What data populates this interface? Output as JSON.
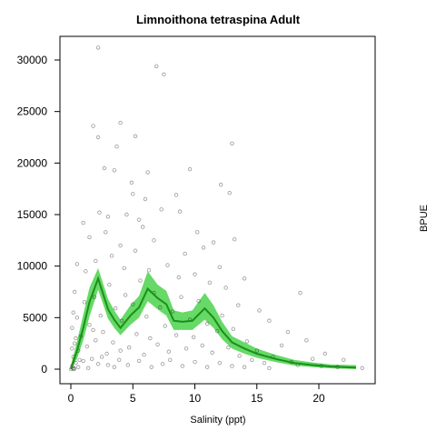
{
  "chart_data": {
    "type": "scatter_band",
    "title": "Limnoithona tetraspina Adult",
    "xlabel": "Salinity (ppt)",
    "ylabel": "BPUE",
    "xlim": [
      -0.88,
      24.54
    ],
    "ylim": [
      -1412,
      32294
    ],
    "xticks": [
      0,
      5,
      10,
      15,
      20
    ],
    "yticks": [
      0,
      5000,
      10000,
      15000,
      20000,
      25000,
      30000
    ],
    "point_color": "#000000",
    "points": [
      [
        2.2,
        31200
      ],
      [
        6.9,
        29400
      ],
      [
        7.5,
        28600
      ],
      [
        1.8,
        23600
      ],
      [
        2.2,
        22500
      ],
      [
        4.0,
        23900
      ],
      [
        3.7,
        21600
      ],
      [
        5.2,
        22600
      ],
      [
        13,
        21900
      ],
      [
        2.7,
        19500
      ],
      [
        3.5,
        19300
      ],
      [
        6.2,
        19100
      ],
      [
        9.6,
        19400
      ],
      [
        4.9,
        18100
      ],
      [
        12.1,
        17900
      ],
      [
        5.0,
        17000
      ],
      [
        6.0,
        16500
      ],
      [
        8.5,
        16900
      ],
      [
        12.8,
        17100
      ],
      [
        1.0,
        14200
      ],
      [
        2.3,
        15200
      ],
      [
        3.0,
        14800
      ],
      [
        4.5,
        15000
      ],
      [
        5.5,
        14500
      ],
      [
        7.3,
        15500
      ],
      [
        8.8,
        15300
      ],
      [
        10.2,
        13300
      ],
      [
        11.5,
        12300
      ],
      [
        13.2,
        12600
      ],
      [
        1.5,
        12800
      ],
      [
        2.8,
        13300
      ],
      [
        4.0,
        12000
      ],
      [
        5.8,
        13800
      ],
      [
        6.7,
        12500
      ],
      [
        9.2,
        11200
      ],
      [
        10.7,
        11800
      ],
      [
        12.0,
        9900
      ],
      [
        14.0,
        8800
      ],
      [
        18.5,
        7400
      ],
      [
        0.5,
        10200
      ],
      [
        1.2,
        9500
      ],
      [
        2.0,
        10500
      ],
      [
        3.3,
        11000
      ],
      [
        4.3,
        9800
      ],
      [
        5.2,
        11500
      ],
      [
        6.3,
        9600
      ],
      [
        7.8,
        10100
      ],
      [
        8.7,
        8900
      ],
      [
        10.0,
        9200
      ],
      [
        11.2,
        8400
      ],
      [
        12.5,
        7900
      ],
      [
        13.5,
        6200
      ],
      [
        15.2,
        5700
      ],
      [
        16.0,
        4700
      ],
      [
        17.5,
        3600
      ],
      [
        19.0,
        2800
      ],
      [
        20.5,
        1500
      ],
      [
        22,
        900
      ],
      [
        23.5,
        100
      ],
      [
        0.1,
        300
      ],
      [
        0.2,
        1200
      ],
      [
        0.3,
        2500
      ],
      [
        0.1,
        4000
      ],
      [
        0.4,
        600
      ],
      [
        0.2,
        100
      ],
      [
        0.5,
        5000
      ],
      [
        0.6,
        1800
      ],
      [
        0.8,
        3200
      ],
      [
        1.0,
        800
      ],
      [
        1.1,
        6500
      ],
      [
        1.3,
        2200
      ],
      [
        1.5,
        4300
      ],
      [
        1.7,
        1000
      ],
      [
        1.9,
        7000
      ],
      [
        2.0,
        2800
      ],
      [
        2.2,
        500
      ],
      [
        2.4,
        5200
      ],
      [
        2.6,
        3600
      ],
      [
        2.9,
        1500
      ],
      [
        3.1,
        8200
      ],
      [
        3.4,
        2600
      ],
      [
        3.6,
        5900
      ],
      [
        3.9,
        900
      ],
      [
        4.1,
        4700
      ],
      [
        4.4,
        7200
      ],
      [
        4.7,
        2100
      ],
      [
        5.0,
        6300
      ],
      [
        5.3,
        3400
      ],
      [
        5.6,
        8600
      ],
      [
        5.9,
        1400
      ],
      [
        6.1,
        5100
      ],
      [
        6.4,
        3000
      ],
      [
        6.7,
        7400
      ],
      [
        7.0,
        2400
      ],
      [
        7.2,
        6000
      ],
      [
        7.6,
        4200
      ],
      [
        7.9,
        1700
      ],
      [
        8.2,
        5600
      ],
      [
        8.5,
        3300
      ],
      [
        8.9,
        7000
      ],
      [
        9.3,
        2000
      ],
      [
        9.6,
        4800
      ],
      [
        9.9,
        3100
      ],
      [
        10.3,
        6600
      ],
      [
        10.6,
        2300
      ],
      [
        11.0,
        4400
      ],
      [
        11.4,
        1600
      ],
      [
        11.8,
        3700
      ],
      [
        12.2,
        5200
      ],
      [
        12.7,
        2100
      ],
      [
        13.1,
        3900
      ],
      [
        13.6,
        1300
      ],
      [
        14.2,
        2700
      ],
      [
        14.6,
        900
      ],
      [
        15.0,
        1800
      ],
      [
        15.6,
        600
      ],
      [
        16.3,
        1200
      ],
      [
        17.0,
        2300
      ],
      [
        17.8,
        700
      ],
      [
        18.3,
        400
      ],
      [
        19.5,
        1000
      ],
      [
        20.2,
        300
      ],
      [
        21.5,
        200
      ],
      [
        0.0,
        0
      ],
      [
        0.2,
        0
      ],
      [
        0.3,
        50
      ],
      [
        0.1,
        2000
      ],
      [
        0.4,
        3000
      ],
      [
        0.2,
        5500
      ],
      [
        0.3,
        7500
      ],
      [
        0.6,
        200
      ],
      [
        0.7,
        900
      ],
      [
        1.4,
        100
      ],
      [
        1.8,
        3800
      ],
      [
        2.5,
        1200
      ],
      [
        3.0,
        400
      ],
      [
        3.5,
        200
      ],
      [
        4.0,
        1800
      ],
      [
        4.6,
        400
      ],
      [
        5.5,
        800
      ],
      [
        6.5,
        200
      ],
      [
        7.4,
        500
      ],
      [
        8.0,
        900
      ],
      [
        9.0,
        300
      ],
      [
        10.0,
        700
      ],
      [
        11.0,
        200
      ],
      [
        12.0,
        600
      ],
      [
        13.0,
        300
      ],
      [
        14.0,
        200
      ],
      [
        16.0,
        100
      ]
    ],
    "line": {
      "color": "#1a8f1a",
      "band_color": "#33cc33",
      "x": [
        0,
        0.5,
        1,
        1.5,
        2.2,
        3,
        3.5,
        4,
        4.8,
        5.5,
        6.2,
        7,
        7.7,
        8.3,
        9,
        9.8,
        10.8,
        11.5,
        12.2,
        13,
        14,
        15,
        16.5,
        18,
        19.5,
        21,
        23
      ],
      "values": [
        0,
        1800,
        4000,
        6500,
        8800,
        5800,
        4800,
        4000,
        5200,
        6000,
        7800,
        6900,
        6300,
        4700,
        4600,
        4700,
        5900,
        5000,
        3700,
        2600,
        2000,
        1500,
        1000,
        600,
        400,
        250,
        150
      ],
      "lower": [
        0,
        1000,
        2800,
        5100,
        7700,
        4900,
        4000,
        3300,
        4300,
        5000,
        6600,
        5800,
        5200,
        3800,
        3800,
        3800,
        4800,
        4000,
        2900,
        2000,
        1500,
        1100,
        700,
        350,
        200,
        80,
        0
      ],
      "upper": [
        400,
        2700,
        5300,
        7900,
        9800,
        6800,
        5700,
        4800,
        6200,
        7100,
        9500,
        8200,
        7600,
        5700,
        5500,
        5700,
        7400,
        6200,
        4600,
        3200,
        2600,
        2000,
        1400,
        900,
        650,
        450,
        400
      ]
    }
  }
}
